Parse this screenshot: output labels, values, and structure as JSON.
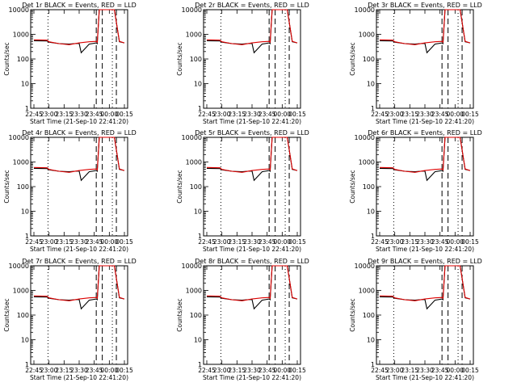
{
  "colors": {
    "events": "#000000",
    "lld": "#dd0000",
    "background": "#ffffff",
    "axes": "#000000"
  },
  "chart_data": [
    {
      "type": "line",
      "title": "Det 1r BLACK = Events, RED = LLD",
      "xlabel": "Start Time (21-Sep-10 22:41:20)",
      "ylabel": "Counts/sec",
      "x_tick_labels": [
        "22:45",
        "23:00",
        "23:15",
        "23:30",
        "23:45",
        "00:00",
        "00:15"
      ],
      "y_scale": "log",
      "y_tick_labels": [
        "1",
        "10",
        "100",
        "1000",
        "10000"
      ],
      "series": [
        {
          "name": "Events",
          "color": "#000000",
          "x": [
            "22:45",
            "22:58",
            "23:00",
            "23:10",
            "23:20",
            "23:25",
            "23:30",
            "23:32",
            "23:40",
            "23:47",
            "23:48",
            "23:50",
            "23:55",
            "00:00",
            "00:05",
            "00:10",
            "00:15"
          ],
          "y": [
            550,
            540,
            480,
            420,
            400,
            420,
            430,
            180,
            400,
            450,
            420,
            10000,
            10000,
            10000,
            10000,
            500,
            450
          ]
        },
        {
          "name": "LLD",
          "color": "#dd0000",
          "x": [
            "22:45",
            "22:58",
            "23:00",
            "23:10",
            "23:20",
            "23:30",
            "23:40",
            "23:47",
            "23:48",
            "23:50",
            "23:55",
            "00:00",
            "00:05",
            "00:10",
            "00:15"
          ],
          "y": [
            600,
            580,
            500,
            420,
            380,
            450,
            500,
            520,
            480,
            10000,
            10000,
            10000,
            10000,
            520,
            450
          ]
        }
      ],
      "vertical_lines": [
        {
          "x": "22:59",
          "style": "dotted"
        },
        {
          "x": "23:47",
          "style": "dashed"
        },
        {
          "x": "23:53",
          "style": "dashed"
        },
        {
          "x": "00:03",
          "style": "dotted"
        },
        {
          "x": "00:07",
          "style": "dashed"
        }
      ]
    },
    {
      "type": "line",
      "title": "Det 2r BLACK = Events, RED = LLD",
      "xlabel": "Start Time (21-Sep-10 22:41:20)",
      "ylabel": "Counts/sec",
      "x_tick_labels": [
        "22:45",
        "23:00",
        "23:15",
        "23:30",
        "23:45",
        "00:00",
        "00:15"
      ],
      "y_scale": "log",
      "y_tick_labels": [
        "1",
        "10",
        "100",
        "1000",
        "10000"
      ]
    },
    {
      "type": "line",
      "title": "Det 3r BLACK = Events, RED = LLD",
      "xlabel": "Start Time (21-Sep-10 22:41:20)",
      "ylabel": "Counts/sec",
      "x_tick_labels": [
        "22:45",
        "23:00",
        "23:15",
        "23:30",
        "23:45",
        "00:00",
        "00:15"
      ],
      "y_scale": "log",
      "y_tick_labels": [
        "1",
        "10",
        "100",
        "1000",
        "10000"
      ]
    },
    {
      "type": "line",
      "title": "Det 4r BLACK = Events, RED = LLD",
      "xlabel": "Start Time (21-Sep-10 22:41:20)",
      "ylabel": "Counts/sec",
      "x_tick_labels": [
        "22:45",
        "23:00",
        "23:15",
        "23:30",
        "23:45",
        "00:00",
        "00:15"
      ],
      "y_scale": "log",
      "y_tick_labels": [
        "1",
        "10",
        "100",
        "1000",
        "10000"
      ]
    },
    {
      "type": "line",
      "title": "Det 5r BLACK = Events, RED = LLD",
      "xlabel": "Start Time (21-Sep-10 22:41:20)",
      "ylabel": "Counts/sec",
      "x_tick_labels": [
        "22:45",
        "23:00",
        "23:15",
        "23:30",
        "23:45",
        "00:00",
        "00:15"
      ],
      "y_scale": "log",
      "y_tick_labels": [
        "1",
        "10",
        "100",
        "1000",
        "10000"
      ]
    },
    {
      "type": "line",
      "title": "Det 6r BLACK = Events, RED = LLD",
      "xlabel": "Start Time (21-Sep-10 22:41:20)",
      "ylabel": "Counts/sec",
      "x_tick_labels": [
        "22:45",
        "23:00",
        "23:15",
        "23:30",
        "23:45",
        "00:00",
        "00:15"
      ],
      "y_scale": "log",
      "y_tick_labels": [
        "1",
        "10",
        "100",
        "1000",
        "10000"
      ]
    },
    {
      "type": "line",
      "title": "Det 7r BLACK = Events, RED = LLD",
      "xlabel": "Start Time (21-Sep-10 22:41:20)",
      "ylabel": "Counts/sec",
      "x_tick_labels": [
        "22:45",
        "23:00",
        "23:15",
        "23:30",
        "23:45",
        "00:00",
        "00:15"
      ],
      "y_scale": "log",
      "y_tick_labels": [
        "1",
        "10",
        "100",
        "1000",
        "10000"
      ]
    },
    {
      "type": "line",
      "title": "Det 8r BLACK = Events, RED = LLD",
      "xlabel": "Start Time (21-Sep-10 22:41:20)",
      "ylabel": "Counts/sec",
      "x_tick_labels": [
        "22:45",
        "23:00",
        "23:15",
        "23:30",
        "23:45",
        "00:00",
        "00:15"
      ],
      "y_scale": "log",
      "y_tick_labels": [
        "1",
        "10",
        "100",
        "1000",
        "10000"
      ]
    },
    {
      "type": "line",
      "title": "Det 9r BLACK = Events, RED = LLD",
      "xlabel": "Start Time (21-Sep-10 22:41:20)",
      "ylabel": "Counts/sec",
      "x_tick_labels": [
        "22:45",
        "23:00",
        "23:15",
        "23:30",
        "23:45",
        "00:00",
        "00:15"
      ],
      "y_scale": "log",
      "y_tick_labels": [
        "1",
        "10",
        "100",
        "1000",
        "10000"
      ]
    }
  ]
}
